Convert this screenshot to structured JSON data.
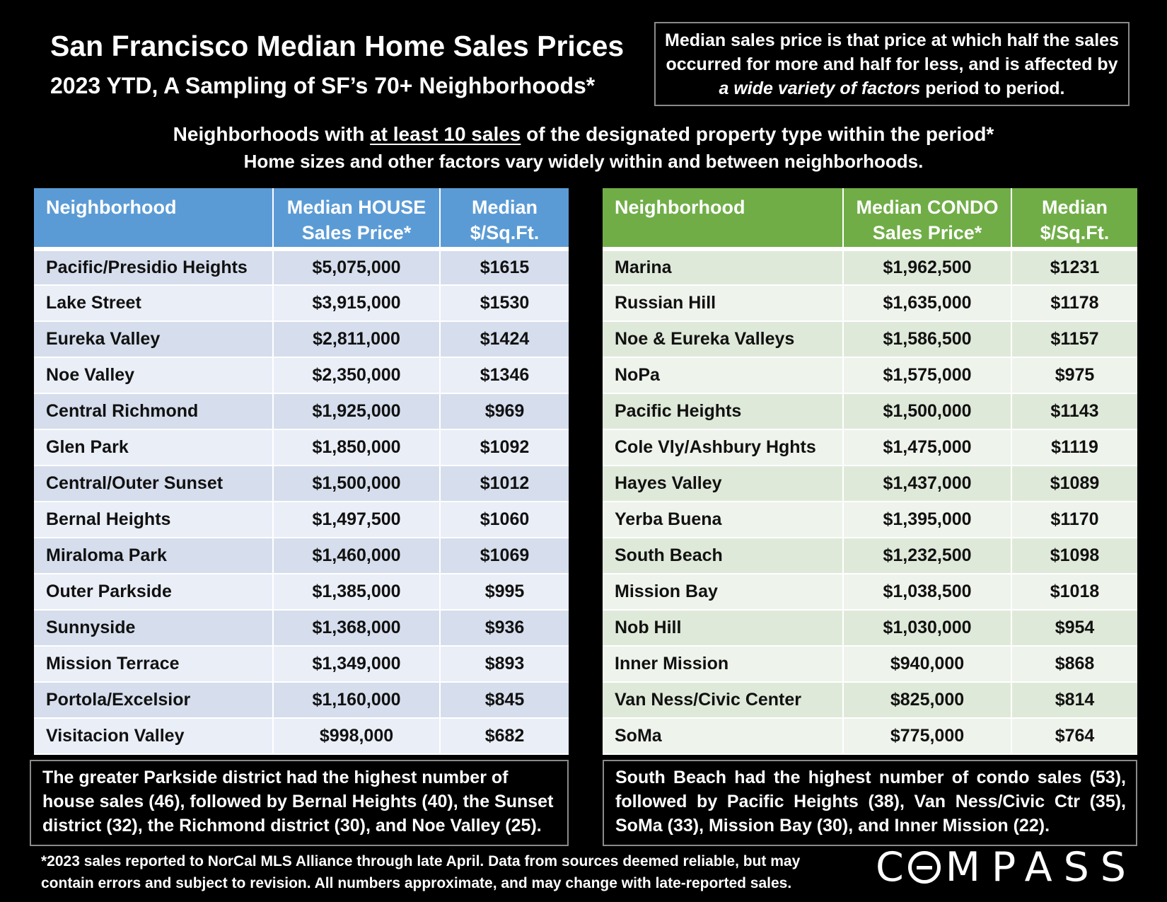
{
  "header": {
    "title": "San Francisco Median Home Sales Prices",
    "subtitle": "2023 YTD, A Sampling of SF’s 70+ Neighborhoods*"
  },
  "definition": {
    "line1": "Median sales price is that price at which half the sales",
    "line2": "occurred for more and half for less, and is affected by",
    "line3_italic": "a wide variety of factors",
    "line3_rest": " period to period."
  },
  "criteria": {
    "line1_a": "Neighborhoods with ",
    "line1_u": "at least 10 sales",
    "line1_b": " of the designated property type within the period*",
    "line2": "Home sizes and other factors vary widely within and between neighborhoods."
  },
  "houses": {
    "headers": {
      "neighborhood": "Neighborhood",
      "price_1": "Median HOUSE",
      "price_2": "Sales Price*",
      "psf_1": "Median",
      "psf_2": "$/Sq.Ft."
    },
    "rows": [
      {
        "name": "Pacific/Presidio Heights",
        "price": "$5,075,000",
        "psf": "$1615"
      },
      {
        "name": "Lake Street",
        "price": "$3,915,000",
        "psf": "$1530"
      },
      {
        "name": "Eureka Valley",
        "price": "$2,811,000",
        "psf": "$1424"
      },
      {
        "name": "Noe Valley",
        "price": "$2,350,000",
        "psf": "$1346"
      },
      {
        "name": "Central Richmond",
        "price": "$1,925,000",
        "psf": "$969"
      },
      {
        "name": "Glen Park",
        "price": "$1,850,000",
        "psf": "$1092"
      },
      {
        "name": "Central/Outer Sunset",
        "price": "$1,500,000",
        "psf": "$1012"
      },
      {
        "name": "Bernal Heights",
        "price": "$1,497,500",
        "psf": "$1060"
      },
      {
        "name": "Miraloma Park",
        "price": "$1,460,000",
        "psf": "$1069"
      },
      {
        "name": "Outer Parkside",
        "price": "$1,385,000",
        "psf": "$995"
      },
      {
        "name": "Sunnyside",
        "price": "$1,368,000",
        "psf": "$936"
      },
      {
        "name": "Mission Terrace",
        "price": "$1,349,000",
        "psf": "$893"
      },
      {
        "name": "Portola/Excelsior",
        "price": "$1,160,000",
        "psf": "$845"
      },
      {
        "name": "Visitacion Valley",
        "price": "$998,000",
        "psf": "$682"
      }
    ],
    "note": "The greater Parkside district had the highest number of house sales (46), followed by Bernal Heights (40), the Sunset district (32), the Richmond district (30), and Noe Valley (25)."
  },
  "condos": {
    "headers": {
      "neighborhood": "Neighborhood",
      "price_1": "Median CONDO",
      "price_2": "Sales Price*",
      "psf_1": "Median",
      "psf_2": "$/Sq.Ft."
    },
    "rows": [
      {
        "name": "Marina",
        "price": "$1,962,500",
        "psf": "$1231"
      },
      {
        "name": "Russian Hill",
        "price": "$1,635,000",
        "psf": "$1178"
      },
      {
        "name": "Noe & Eureka Valleys",
        "price": "$1,586,500",
        "psf": "$1157"
      },
      {
        "name": "NoPa",
        "price": "$1,575,000",
        "psf": "$975"
      },
      {
        "name": "Pacific Heights",
        "price": "$1,500,000",
        "psf": "$1143"
      },
      {
        "name": "Cole Vly/Ashbury Hghts",
        "price": "$1,475,000",
        "psf": "$1119"
      },
      {
        "name": "Hayes Valley",
        "price": "$1,437,000",
        "psf": "$1089"
      },
      {
        "name": "Yerba Buena",
        "price": "$1,395,000",
        "psf": "$1170"
      },
      {
        "name": "South Beach",
        "price": "$1,232,500",
        "psf": "$1098"
      },
      {
        "name": "Mission Bay",
        "price": "$1,038,500",
        "psf": "$1018"
      },
      {
        "name": "Nob Hill",
        "price": "$1,030,000",
        "psf": "$954"
      },
      {
        "name": "Inner Mission",
        "price": "$940,000",
        "psf": "$868"
      },
      {
        "name": "Van Ness/Civic Center",
        "price": "$825,000",
        "psf": "$814"
      },
      {
        "name": "SoMa",
        "price": "$775,000",
        "psf": "$764"
      }
    ],
    "note": "South Beach had the highest number of condo sales (53), followed by Pacific Heights (38), Van Ness/Civic Ctr (35), SoMa (33), Mission Bay (30), and Inner Mission (22)."
  },
  "footnote": {
    "line1": "*2023 sales reported to NorCal MLS Alliance through late April. Data from sources deemed reliable, but may",
    "line2": "contain errors and subject to revision. All numbers approximate, and may change with late-reported sales."
  },
  "logo": {
    "text": "COMPASS",
    "c": "C",
    "rest": "MPASS"
  }
}
